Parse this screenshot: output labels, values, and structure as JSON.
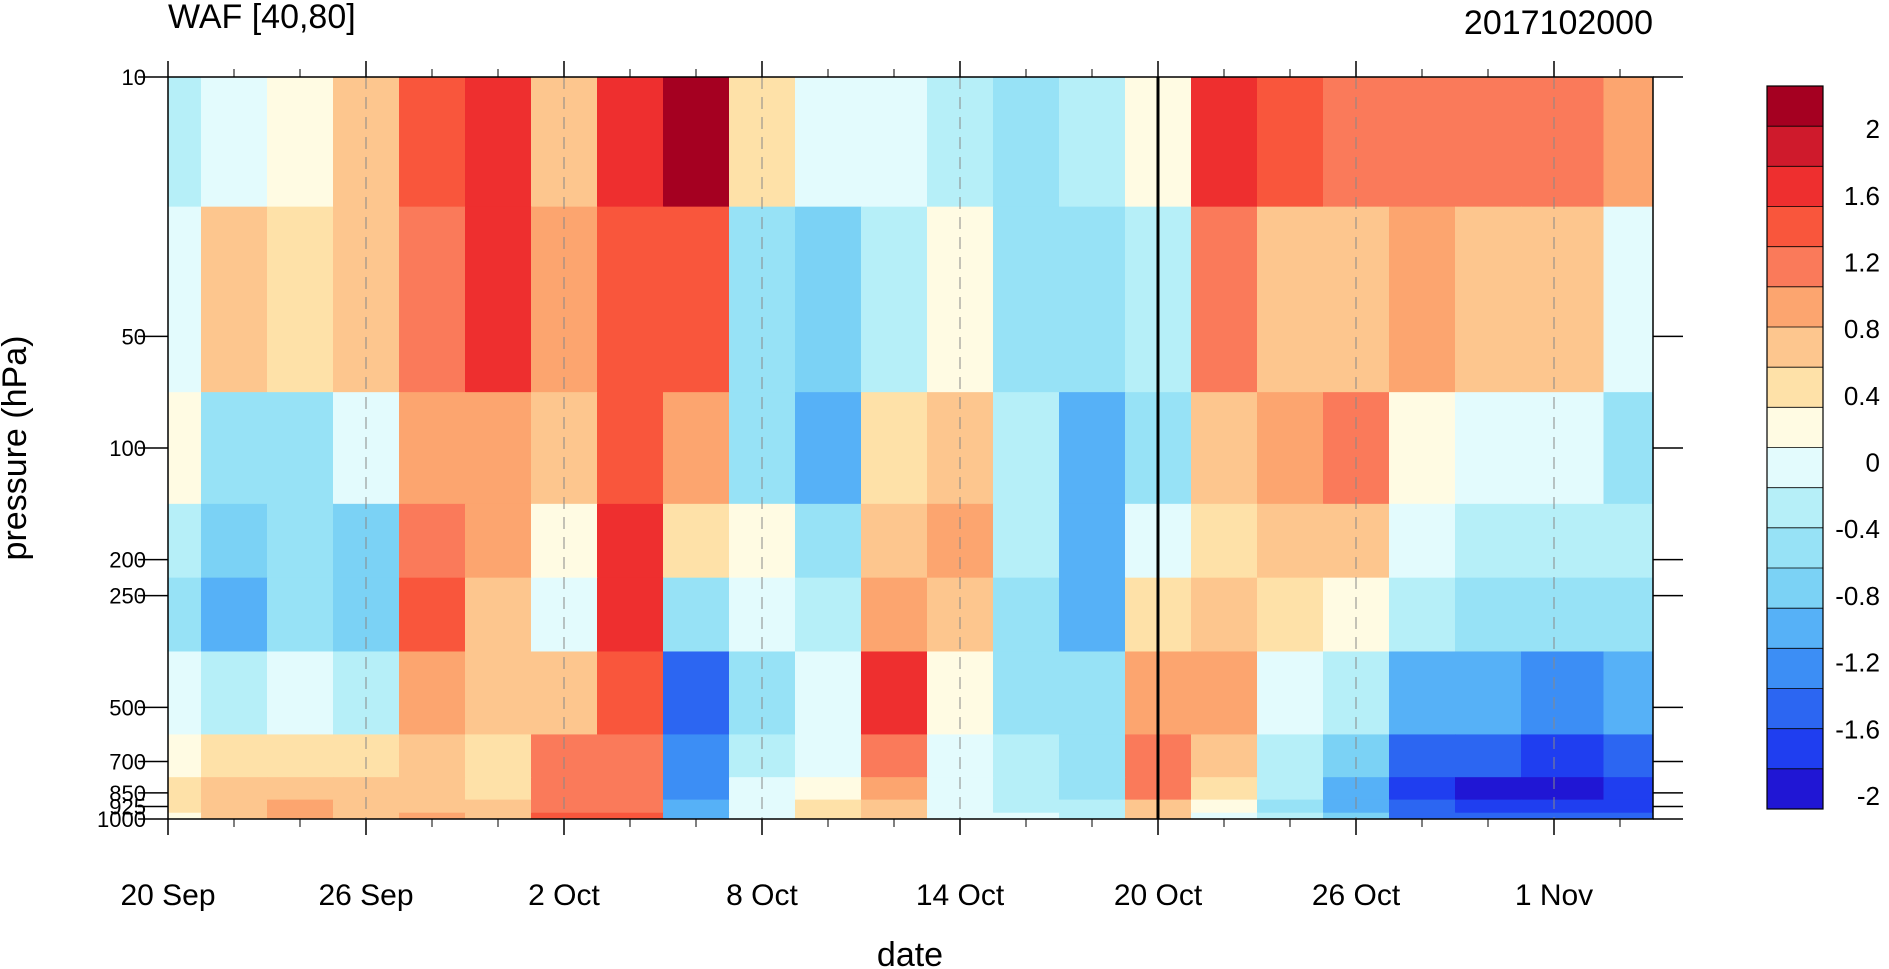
{
  "chart_data": {
    "type": "heatmap",
    "title_left": "WAF [40,80]",
    "title_right": "2017102000",
    "xlabel": "date",
    "ylabel": "pressure (hPa)",
    "x_ticks": [
      "20 Sep",
      "26 Sep",
      "2 Oct",
      "8 Oct",
      "14 Oct",
      "20 Oct",
      "26 Oct",
      "1 Nov"
    ],
    "x_start": "2017-09-20",
    "x_end": "2017-11-04",
    "y_ticks": [
      "10",
      "50",
      "100",
      "200",
      "250",
      "500",
      "700",
      "850",
      "925",
      "1000"
    ],
    "y_values": [
      10,
      50,
      100,
      200,
      250,
      500,
      700,
      850,
      925,
      1000
    ],
    "y_scale": "log",
    "ylim": [
      1000,
      10
    ],
    "vertical_marker": "20 Oct",
    "colorbar": {
      "labels": [
        "2",
        "1.6",
        "1.2",
        "0.8",
        "0.4",
        "0",
        "-0.4",
        "-0.8",
        "-1.2",
        "-1.6",
        "-2"
      ],
      "colors": [
        "#a50021",
        "#cf1a2c",
        "#ee2f2f",
        "#f9563c",
        "#fa7a5a",
        "#fca56f",
        "#fdc68e",
        "#fee1a8",
        "#fffbe3",
        "#e3fbfd",
        "#b6eff8",
        "#97e2f6",
        "#7bd2f5",
        "#56b1f7",
        "#3c8ef5",
        "#2c66f2",
        "#1f3ef0",
        "#2016d4"
      ]
    },
    "series": [
      {
        "date": "2017-09-20",
        "v": [
          -0.4,
          -0.2,
          0.1,
          -0.4,
          -0.6,
          0.0,
          0.2,
          0.3,
          0.3,
          0.2
        ]
      },
      {
        "date": "2017-09-22",
        "v": [
          -0.2,
          0.6,
          -0.6,
          -0.8,
          -1.0,
          -0.3,
          0.3,
          0.5,
          0.6,
          0.5
        ]
      },
      {
        "date": "2017-09-24",
        "v": [
          0.1,
          0.4,
          -0.5,
          -0.5,
          -0.6,
          -0.2,
          0.4,
          0.6,
          0.8,
          0.8
        ]
      },
      {
        "date": "2017-09-26",
        "v": [
          0.5,
          0.5,
          0.0,
          -0.8,
          -0.9,
          -0.3,
          0.3,
          0.5,
          0.6,
          0.7
        ]
      },
      {
        "date": "2017-09-28",
        "v": [
          1.4,
          1.2,
          0.8,
          1.0,
          1.4,
          0.9,
          0.6,
          0.5,
          0.6,
          0.8
        ]
      },
      {
        "date": "2017-09-30",
        "v": [
          1.6,
          1.5,
          0.9,
          0.9,
          0.7,
          0.5,
          0.3,
          0.4,
          0.6,
          0.7
        ]
      },
      {
        "date": "2017-10-02",
        "v": [
          0.7,
          0.8,
          0.6,
          0.2,
          -0.2,
          0.7,
          1.0,
          1.1,
          1.2,
          1.3
        ]
      },
      {
        "date": "2017-10-04",
        "v": [
          1.6,
          1.4,
          1.3,
          1.5,
          1.6,
          1.3,
          1.1,
          1.0,
          1.2,
          1.4
        ]
      },
      {
        "date": "2017-10-06",
        "v": [
          2.0,
          1.4,
          0.9,
          0.3,
          -0.6,
          -1.6,
          -1.4,
          -1.3,
          -1.2,
          -1.0
        ]
      },
      {
        "date": "2017-10-08",
        "v": [
          0.4,
          -0.5,
          -0.7,
          0.1,
          0.0,
          -0.5,
          -0.3,
          -0.2,
          -0.2,
          -0.1
        ]
      },
      {
        "date": "2017-10-10",
        "v": [
          -0.1,
          -0.8,
          -1.1,
          -0.6,
          -0.3,
          -0.2,
          0.0,
          0.2,
          0.3,
          0.3
        ]
      },
      {
        "date": "2017-10-12",
        "v": [
          -0.2,
          -0.3,
          0.3,
          0.7,
          0.9,
          1.6,
          1.2,
          0.8,
          0.6,
          0.5
        ]
      },
      {
        "date": "2017-10-14",
        "v": [
          -0.3,
          0.2,
          0.5,
          0.9,
          0.6,
          0.1,
          -0.2,
          -0.2,
          -0.1,
          -0.1
        ]
      },
      {
        "date": "2017-10-16",
        "v": [
          -0.6,
          -0.5,
          -0.4,
          -0.3,
          -0.5,
          -0.5,
          -0.4,
          -0.4,
          -0.3,
          -0.2
        ]
      },
      {
        "date": "2017-10-18",
        "v": [
          -0.4,
          -0.7,
          -1.0,
          -1.1,
          -1.0,
          -0.7,
          -0.6,
          -0.5,
          -0.4,
          -0.3
        ]
      },
      {
        "date": "2017-10-20",
        "v": [
          0.2,
          -0.3,
          -0.5,
          -0.2,
          0.4,
          0.8,
          1.0,
          1.0,
          0.7,
          0.5
        ]
      },
      {
        "date": "2017-10-22",
        "v": [
          1.5,
          1.0,
          0.6,
          0.4,
          0.5,
          0.8,
          0.6,
          0.3,
          0.1,
          0.0
        ]
      },
      {
        "date": "2017-10-24",
        "v": [
          1.3,
          0.7,
          0.8,
          0.5,
          0.3,
          0.0,
          -0.3,
          -0.4,
          -0.5,
          -0.4
        ]
      },
      {
        "date": "2017-10-26",
        "v": [
          1.0,
          0.5,
          1.1,
          0.6,
          0.2,
          -0.4,
          -0.8,
          -1.0,
          -1.0,
          -0.9
        ]
      },
      {
        "date": "2017-10-28",
        "v": [
          1.2,
          0.8,
          0.2,
          -0.1,
          -0.4,
          -1.0,
          -1.5,
          -1.8,
          -1.7,
          -1.5
        ]
      },
      {
        "date": "2017-10-30",
        "v": [
          1.0,
          0.5,
          0.0,
          -0.3,
          -0.5,
          -1.2,
          -1.7,
          -2.0,
          -1.9,
          -1.7
        ]
      },
      {
        "date": "2017-11-01",
        "v": [
          1.2,
          0.6,
          -0.1,
          -0.4,
          -0.6,
          -1.3,
          -1.8,
          -2.0,
          -1.9,
          -1.7
        ]
      },
      {
        "date": "2017-11-04",
        "v": [
          0.8,
          0.0,
          -0.5,
          -0.4,
          -0.5,
          -1.2,
          -1.6,
          -1.9,
          -1.8,
          -1.6
        ]
      }
    ]
  }
}
